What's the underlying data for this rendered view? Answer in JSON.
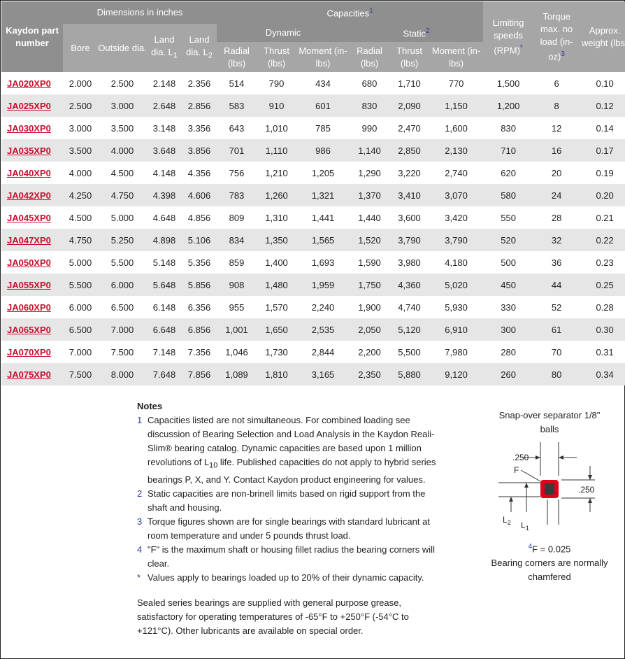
{
  "header": {
    "part": "Kaydon part number",
    "dimensions": "Dimensions in inches",
    "bore": "Bore",
    "outside_dia": "Outside dia.",
    "land1": "Land dia. L",
    "land1_sub": "1",
    "land2": "Land dia. L",
    "land2_sub": "2",
    "capacities": "Capacities",
    "capacities_ref": "1",
    "dynamic": "Dynamic",
    "static": "Static",
    "static_ref": "2",
    "radial": "Radial (lbs)",
    "thrust": "Thrust (lbs)",
    "moment": "Moment (in-lbs)",
    "limiting": "Limiting speeds (RPM)",
    "limiting_ref": "*",
    "torque": "Torque max. no load (in-oz)",
    "torque_ref": "3",
    "weight": "Approx. weight (lbs)"
  },
  "rows": [
    [
      "JA020XP0",
      "2.000",
      "2.500",
      "2.148",
      "2.356",
      "514",
      "790",
      "434",
      "680",
      "1,710",
      "770",
      "1,500",
      "6",
      "0.10"
    ],
    [
      "JA025XP0",
      "2.500",
      "3.000",
      "2.648",
      "2.856",
      "583",
      "910",
      "601",
      "830",
      "2,090",
      "1,150",
      "1,200",
      "8",
      "0.12"
    ],
    [
      "JA030XP0",
      "3.000",
      "3.500",
      "3.148",
      "3.356",
      "643",
      "1,010",
      "785",
      "990",
      "2,470",
      "1,600",
      "830",
      "12",
      "0.14"
    ],
    [
      "JA035XP0",
      "3.500",
      "4.000",
      "3.648",
      "3.856",
      "701",
      "1,110",
      "986",
      "1,140",
      "2,850",
      "2,130",
      "710",
      "16",
      "0.17"
    ],
    [
      "JA040XP0",
      "4.000",
      "4.500",
      "4.148",
      "4.356",
      "756",
      "1,210",
      "1,205",
      "1,290",
      "3,220",
      "2,740",
      "620",
      "20",
      "0.19"
    ],
    [
      "JA042XP0",
      "4.250",
      "4.750",
      "4.398",
      "4.606",
      "783",
      "1,260",
      "1,321",
      "1,370",
      "3,410",
      "3,070",
      "580",
      "24",
      "0.20"
    ],
    [
      "JA045XP0",
      "4.500",
      "5.000",
      "4.648",
      "4.856",
      "809",
      "1,310",
      "1,441",
      "1,440",
      "3,600",
      "3,420",
      "550",
      "28",
      "0.21"
    ],
    [
      "JA047XP0",
      "4.750",
      "5.250",
      "4.898",
      "5.106",
      "834",
      "1,350",
      "1,565",
      "1,520",
      "3,790",
      "3,790",
      "520",
      "32",
      "0.22"
    ],
    [
      "JA050XP0",
      "5.000",
      "5.500",
      "5.148",
      "5.356",
      "859",
      "1,400",
      "1,693",
      "1,590",
      "3,980",
      "4,180",
      "500",
      "36",
      "0.23"
    ],
    [
      "JA055XP0",
      "5.500",
      "6.000",
      "5.648",
      "5.856",
      "908",
      "1,480",
      "1,959",
      "1,750",
      "4,360",
      "5,020",
      "450",
      "44",
      "0.25"
    ],
    [
      "JA060XP0",
      "6.000",
      "6.500",
      "6.148",
      "6.356",
      "955",
      "1,570",
      "2,240",
      "1,900",
      "4,740",
      "5,930",
      "330",
      "52",
      "0.28"
    ],
    [
      "JA065XP0",
      "6.500",
      "7.000",
      "6.648",
      "6.856",
      "1,001",
      "1,650",
      "2,535",
      "2,050",
      "5,120",
      "6,910",
      "300",
      "61",
      "0.30"
    ],
    [
      "JA070XP0",
      "7.000",
      "7.500",
      "7.148",
      "7.356",
      "1,046",
      "1,730",
      "2,844",
      "2,200",
      "5,500",
      "7,980",
      "280",
      "70",
      "0.31"
    ],
    [
      "JA075XP0",
      "7.500",
      "8.000",
      "7.648",
      "7.856",
      "1,089",
      "1,810",
      "3,165",
      "2,350",
      "5,880",
      "9,120",
      "260",
      "80",
      "0.34"
    ]
  ],
  "notes": {
    "title": "Notes",
    "items": [
      {
        "mark": "1",
        "text_a": "Capacities listed are not simultaneous. For combined loading see discussion of Bearing Selection and Load Analysis in the Kaydon Reali-Slim® bearing catalog. Dynamic capacities are based upon 1 million revolutions of L",
        "sub": "10",
        "text_b": " life. Published capacities do not apply to hybrid series bearings P, X, and Y. Contact Kaydon product engineering for values."
      },
      {
        "mark": "2",
        "text": "Static capacities are non-brinell limits based on rigid support from the shaft and housing."
      },
      {
        "mark": "3",
        "text": "Torque figures shown are for single bearings with standard lubricant at room temperature and under 5 pounds thrust load."
      },
      {
        "mark": "4",
        "text": "\"F\" is the maximum shaft or housing fillet radius the bearing corners will clear."
      },
      {
        "mark": "*",
        "text": "Values apply to bearings loaded up to 20% of their dynamic capacity."
      }
    ],
    "sealed": "Sealed series bearings are supplied with general purpose grease, satisfactory for operating temperatures of -65°F to +250°F (-54°C to +121°C). Other lubricants are available on special order."
  },
  "diagram": {
    "caption_top": "Snap-over separator 1/8\" balls",
    "dim_top": ".250",
    "dim_right": ".250",
    "label_f": "F",
    "label_l1": "L",
    "label_l1_sub": "1",
    "label_l2": "L",
    "label_l2_sub": "2",
    "f_ref": "4",
    "f_value": "F = 0.025",
    "caption_bottom": "Bearing corners are normally chamfered",
    "accent_color": "#e1001a"
  },
  "colors": {
    "header_bg": "#a6a6a6",
    "header_dark_bg": "#8f8f8f",
    "row_alt_bg": "#e6e6e6",
    "link": "#c8102e",
    "ref_blue": "#2a3aa8"
  }
}
